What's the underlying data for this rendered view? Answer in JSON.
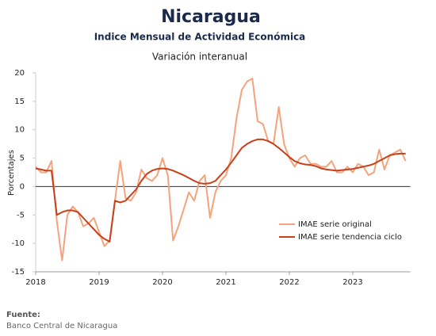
{
  "chart_data": {
    "type": "line",
    "title": "Nicaragua",
    "subtitle": "Indice Mensual de  Actividad Económica",
    "description": "Variación interanual",
    "ylabel": "Porcentajes",
    "source_label": "Fuente:",
    "source": "Banco Central de Nicaragua",
    "categories": [
      "2018",
      null,
      null,
      null,
      null,
      null,
      null,
      null,
      null,
      null,
      null,
      null,
      "2019",
      null,
      null,
      null,
      null,
      null,
      null,
      null,
      null,
      null,
      null,
      null,
      "2020",
      null,
      null,
      null,
      null,
      null,
      null,
      null,
      null,
      null,
      null,
      null,
      "2021",
      null,
      null,
      null,
      null,
      null,
      null,
      null,
      null,
      null,
      null,
      null,
      "2022",
      null,
      null,
      null,
      null,
      null,
      null,
      null,
      null,
      null,
      null,
      null,
      "2023",
      null,
      null,
      null,
      null,
      null,
      null,
      null,
      null,
      null,
      null
    ],
    "ylim": [
      -15,
      20
    ],
    "yticks": [
      -15,
      -10,
      -5,
      0,
      5,
      10,
      15,
      20
    ],
    "legend": "lower right",
    "series": [
      {
        "name": "IMAE serie original",
        "color": "#f4a37c",
        "values": [
          3.5,
          2.5,
          2.5,
          4.5,
          -6,
          -13,
          -5,
          -3.5,
          -4.5,
          -7,
          -6.5,
          -5.5,
          -8,
          -10.5,
          -9.5,
          -2.5,
          4.5,
          -2,
          -2.5,
          -1,
          3,
          1.5,
          1,
          2,
          5,
          2,
          -9.5,
          -7,
          -4,
          -1,
          -2.5,
          1,
          2,
          -5.5,
          -1,
          1,
          2,
          5,
          12,
          17,
          18.5,
          19,
          11.5,
          11,
          8,
          7.5,
          14,
          7.5,
          5,
          3.5,
          5,
          5.5,
          4,
          4,
          3.5,
          3.5,
          4.5,
          2.5,
          2.5,
          3.5,
          2.5,
          4,
          3.5,
          2,
          2.5,
          6.5,
          3,
          5.5,
          6,
          6.5,
          4.5
        ]
      },
      {
        "name": "IMAE serie  tendencia ciclo",
        "color": "#c8401a",
        "values": [
          3.2,
          3,
          2.8,
          2.8,
          -5,
          -4.5,
          -4.2,
          -4.2,
          -4.5,
          -5.5,
          -6.5,
          -7.5,
          -8.5,
          -9.2,
          -9.7,
          -2.5,
          -2.8,
          -2.5,
          -1.5,
          -0.5,
          1,
          2.2,
          2.8,
          3.1,
          3.2,
          3.1,
          2.8,
          2.4,
          2,
          1.5,
          1,
          0.6,
          0.5,
          0.6,
          1,
          2,
          3,
          4.2,
          5.5,
          6.8,
          7.5,
          8,
          8.3,
          8.3,
          8,
          7.5,
          6.8,
          6,
          5.2,
          4.5,
          4.1,
          3.9,
          3.8,
          3.6,
          3.2,
          3,
          2.9,
          2.8,
          2.9,
          3,
          3.1,
          3.3,
          3.5,
          3.7,
          4,
          4.5,
          5,
          5.5,
          5.7,
          5.8,
          5.8
        ]
      }
    ]
  }
}
